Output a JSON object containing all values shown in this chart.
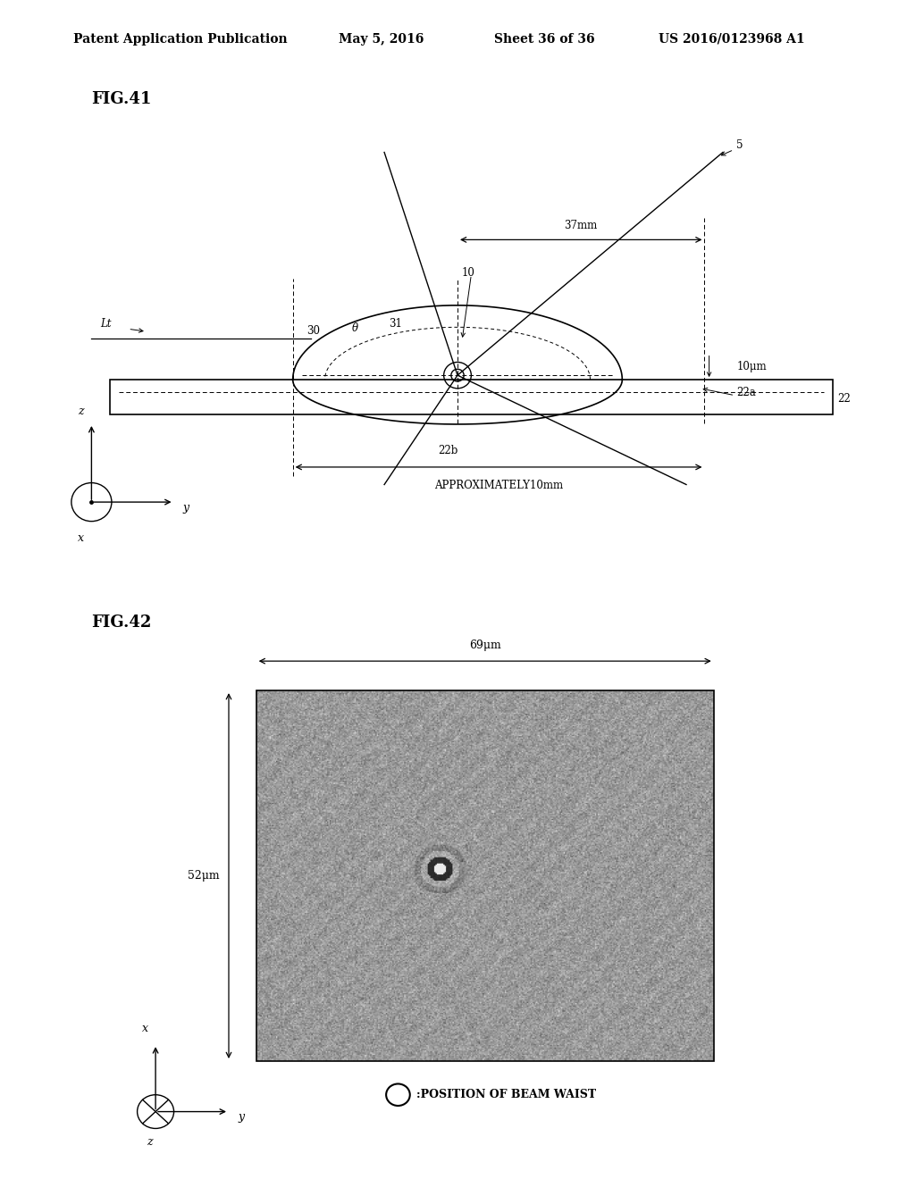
{
  "bg_color": "#ffffff",
  "header_text": "Patent Application Publication",
  "header_date": "May 5, 2016",
  "header_sheet": "Sheet 36 of 36",
  "header_patent": "US 2016/0123968 A1",
  "fig41_label": "FIG.41",
  "fig42_label": "FIG.42",
  "label_37mm": "37mm",
  "label_5": "5",
  "label_10": "10",
  "label_10um": "10μm",
  "label_22a": "22a",
  "label_22b": "22b",
  "label_22": "22",
  "label_30": "30",
  "label_31": "31",
  "label_theta": "θ",
  "label_Lt": "Lt",
  "label_approx10mm": "APPROXIMATELY10mm",
  "label_69um": "69μm",
  "label_52um": "52μm",
  "label_beam_waist": ":POSITION OF BEAM WAIST"
}
